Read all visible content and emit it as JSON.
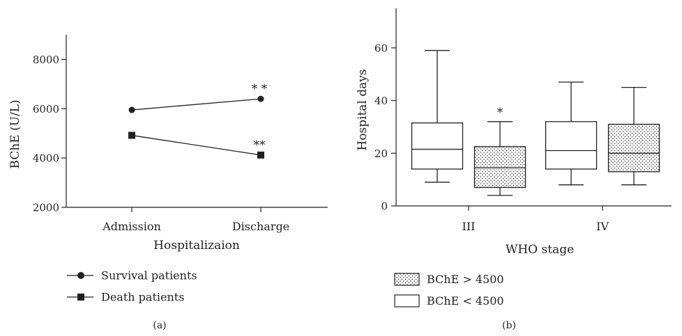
{
  "chart_data": [
    {
      "type": "line",
      "panel_label": "(a)",
      "xlabel": "Hospitalizaion",
      "ylabel": "BChE (U/L)",
      "categories": [
        "Admission",
        "Discharge"
      ],
      "ylim": [
        2000,
        9000
      ],
      "yticks": [
        2000,
        4000,
        6000,
        8000
      ],
      "grid": false,
      "legend_position": "bottom-left",
      "series": [
        {
          "name": "Survival patients",
          "marker": "circle",
          "values": [
            5950,
            6400
          ]
        },
        {
          "name": "Death patients",
          "marker": "square",
          "values": [
            4920,
            4120
          ]
        }
      ],
      "annotations": [
        {
          "text": "* *",
          "category": "Discharge",
          "series": "Survival patients"
        },
        {
          "text": "**",
          "category": "Discharge",
          "series": "Death patients"
        }
      ]
    },
    {
      "type": "box",
      "panel_label": "(b)",
      "xlabel": "WHO stage",
      "ylabel": "Hospital days",
      "categories": [
        "III",
        "IV"
      ],
      "ylim": [
        0,
        75
      ],
      "yticks": [
        0,
        20,
        40,
        60
      ],
      "grid": false,
      "legend_position": "bottom-left",
      "series": [
        {
          "name": "BChE < 4500",
          "fill": "plain",
          "boxes": [
            {
              "category": "III",
              "min": 9,
              "q1": 14,
              "median": 21.5,
              "q3": 31.5,
              "max": 59
            },
            {
              "category": "IV",
              "min": 8,
              "q1": 14,
              "median": 21,
              "q3": 32,
              "max": 47
            }
          ]
        },
        {
          "name": "BChE > 4500",
          "fill": "dotted",
          "boxes": [
            {
              "category": "III",
              "min": 4,
              "q1": 7,
              "median": 14.5,
              "q3": 22.5,
              "max": 32
            },
            {
              "category": "IV",
              "min": 8,
              "q1": 13,
              "median": 20,
              "q3": 31,
              "max": 45
            }
          ]
        }
      ],
      "annotations": [
        {
          "text": "*",
          "category": "III",
          "series": "BChE > 4500"
        }
      ],
      "legend_order": [
        "BChE > 4500",
        "BChE < 4500"
      ]
    }
  ],
  "colors": {
    "ink": "#231f20",
    "background": "#ffffff"
  }
}
